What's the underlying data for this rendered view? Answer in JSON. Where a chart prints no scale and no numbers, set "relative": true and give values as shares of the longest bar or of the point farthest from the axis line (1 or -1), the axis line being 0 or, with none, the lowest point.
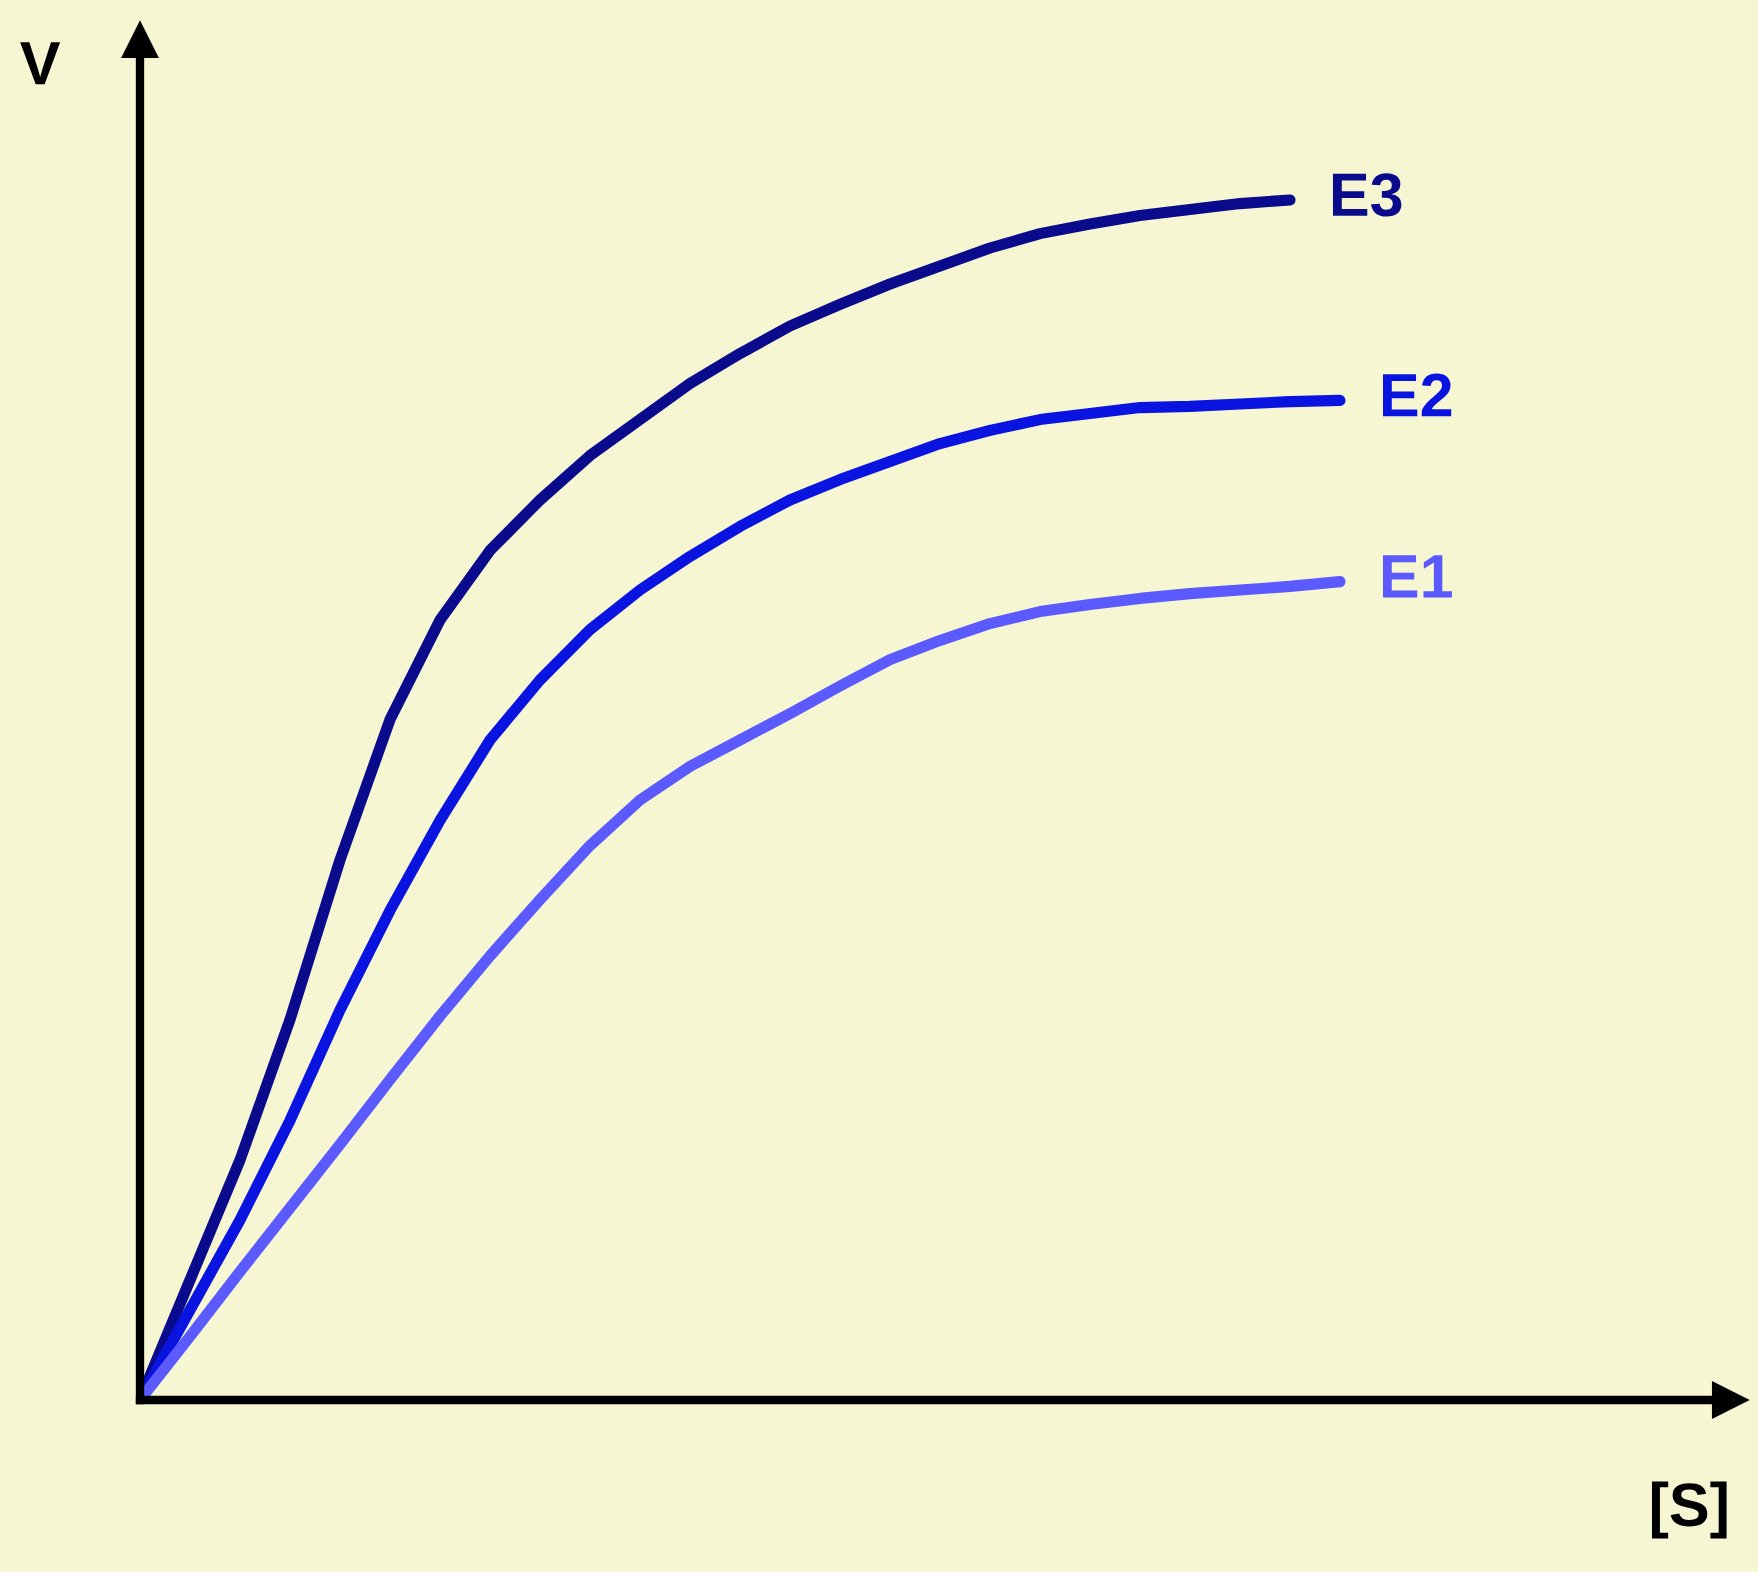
{
  "chart_data": {
    "type": "line",
    "relative": true,
    "xlabel": "[S]",
    "ylabel": "V",
    "categories": [
      null,
      null,
      null,
      null,
      null,
      null,
      null,
      null,
      null,
      null,
      null,
      null,
      null,
      null,
      null,
      null,
      null,
      null,
      null,
      null,
      null,
      null,
      null,
      null,
      null
    ],
    "series": [
      {
        "name": "E3",
        "color": "#0a0a8c",
        "values": [
          0,
          0.1,
          0.2,
          0.317,
          0.45,
          0.567,
          0.65,
          0.708,
          0.75,
          0.787,
          0.817,
          0.847,
          0.872,
          0.895,
          0.913,
          0.93,
          0.945,
          0.96,
          0.972,
          0.98,
          0.987,
          0.992,
          0.997,
          1,
          null
        ]
      },
      {
        "name": "E2",
        "color": "#0a14e0",
        "values": [
          0,
          0.075,
          0.15,
          0.233,
          0.325,
          0.408,
          0.483,
          0.55,
          0.6,
          0.642,
          0.675,
          0.703,
          0.728,
          0.75,
          0.767,
          0.782,
          0.797,
          0.808,
          0.817,
          0.822,
          0.827,
          0.828,
          0.83,
          0.832,
          0.833
        ]
      },
      {
        "name": "E1",
        "color": "#5a5aff",
        "values": [
          0,
          0.053,
          0.107,
          0.16,
          0.213,
          0.267,
          0.32,
          0.37,
          0.417,
          0.462,
          0.5,
          0.528,
          0.55,
          0.572,
          0.595,
          0.617,
          0.633,
          0.647,
          0.657,
          0.663,
          0.668,
          0.672,
          0.675,
          0.678,
          0.682
        ]
      }
    ],
    "marker": "none",
    "line_style": "solid",
    "grid": false
  }
}
